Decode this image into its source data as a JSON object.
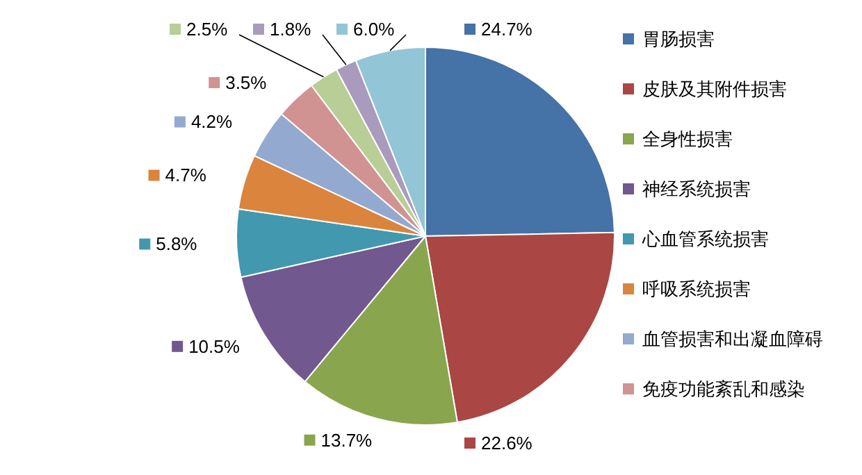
{
  "chart_data": {
    "type": "pie",
    "categories": [
      "胃肠损害",
      "皮肤及其附件损害",
      "全身性损害",
      "神经系统损害",
      "心血管系统损害",
      "呼吸系统损害",
      "血管损害和出凝血障碍",
      "免疫功能紊乱和感染",
      null,
      null,
      null
    ],
    "values": [
      24.7,
      22.6,
      13.7,
      10.5,
      5.8,
      4.7,
      4.2,
      3.5,
      2.5,
      1.8,
      6.0
    ],
    "value_labels": [
      "24.7%",
      "22.6%",
      "13.7%",
      "10.5%",
      "5.8%",
      "4.7%",
      "4.2%",
      "3.5%",
      "2.5%",
      "1.8%",
      "6.0%"
    ],
    "colors": [
      "#4572a7",
      "#aa4643",
      "#89a54e",
      "#71588f",
      "#4198af",
      "#db843d",
      "#93a9cf",
      "#d19392",
      "#b9cd96",
      "#a99bbd",
      "#92c5d5"
    ],
    "legend": "right"
  }
}
